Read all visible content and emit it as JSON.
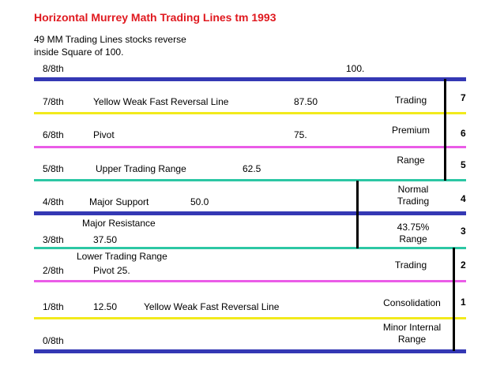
{
  "title": "Horizontal Murrey Math Trading Lines tm 1993",
  "subtitle": [
    "49 MM Trading Lines stocks reverse",
    "inside Square of 100."
  ],
  "colors": {
    "title": "#e0191f",
    "blue": "#3438b4",
    "yellow": "#f2ea1c",
    "magenta": "#ea5ce7",
    "teal": "#2cc7a4",
    "divider": "#000000"
  },
  "lines": [
    {
      "label": "8/8th",
      "text": "",
      "value": "100.",
      "color": "blue"
    },
    {
      "label": "7/8th",
      "text": "Yellow Weak Fast Reversal Line",
      "value": "87.50",
      "color": "yellow"
    },
    {
      "label": "6/8th",
      "text": "Pivot",
      "value": "75.",
      "color": "magenta"
    },
    {
      "label": "5/8th",
      "text": "Upper Trading Range",
      "value": "62.5",
      "color": "teal"
    },
    {
      "label": "4/8th",
      "text": "Major Support",
      "value": "50.0",
      "color": "blue"
    },
    {
      "label": "3/8th",
      "text_above": "Major Resistance",
      "value": "37.50",
      "color": "teal"
    },
    {
      "label": "2/8th",
      "text_above": "Lower Trading Range",
      "text": "Pivot 25.",
      "color": "magenta"
    },
    {
      "label": "1/8th",
      "value": "12.50",
      "text": "Yellow Weak Fast Reversal Line",
      "color": "yellow"
    },
    {
      "label": "0/8th",
      "text": "",
      "color": "blue"
    }
  ],
  "zones": [
    {
      "lines": [
        "Trading"
      ],
      "number": "7"
    },
    {
      "lines": [
        "Premium"
      ],
      "number": "6"
    },
    {
      "lines": [
        "Range"
      ],
      "number": "5"
    },
    {
      "lines": [
        "Normal",
        "Trading"
      ],
      "number": "4"
    },
    {
      "lines": [
        "43.75%",
        "Range"
      ],
      "number": "3"
    },
    {
      "lines": [
        "Trading"
      ],
      "number": "2"
    },
    {
      "lines": [
        "Consolidation"
      ],
      "number": "1"
    },
    {
      "lines": [
        "Minor Internal",
        "Range"
      ],
      "number": ""
    }
  ]
}
